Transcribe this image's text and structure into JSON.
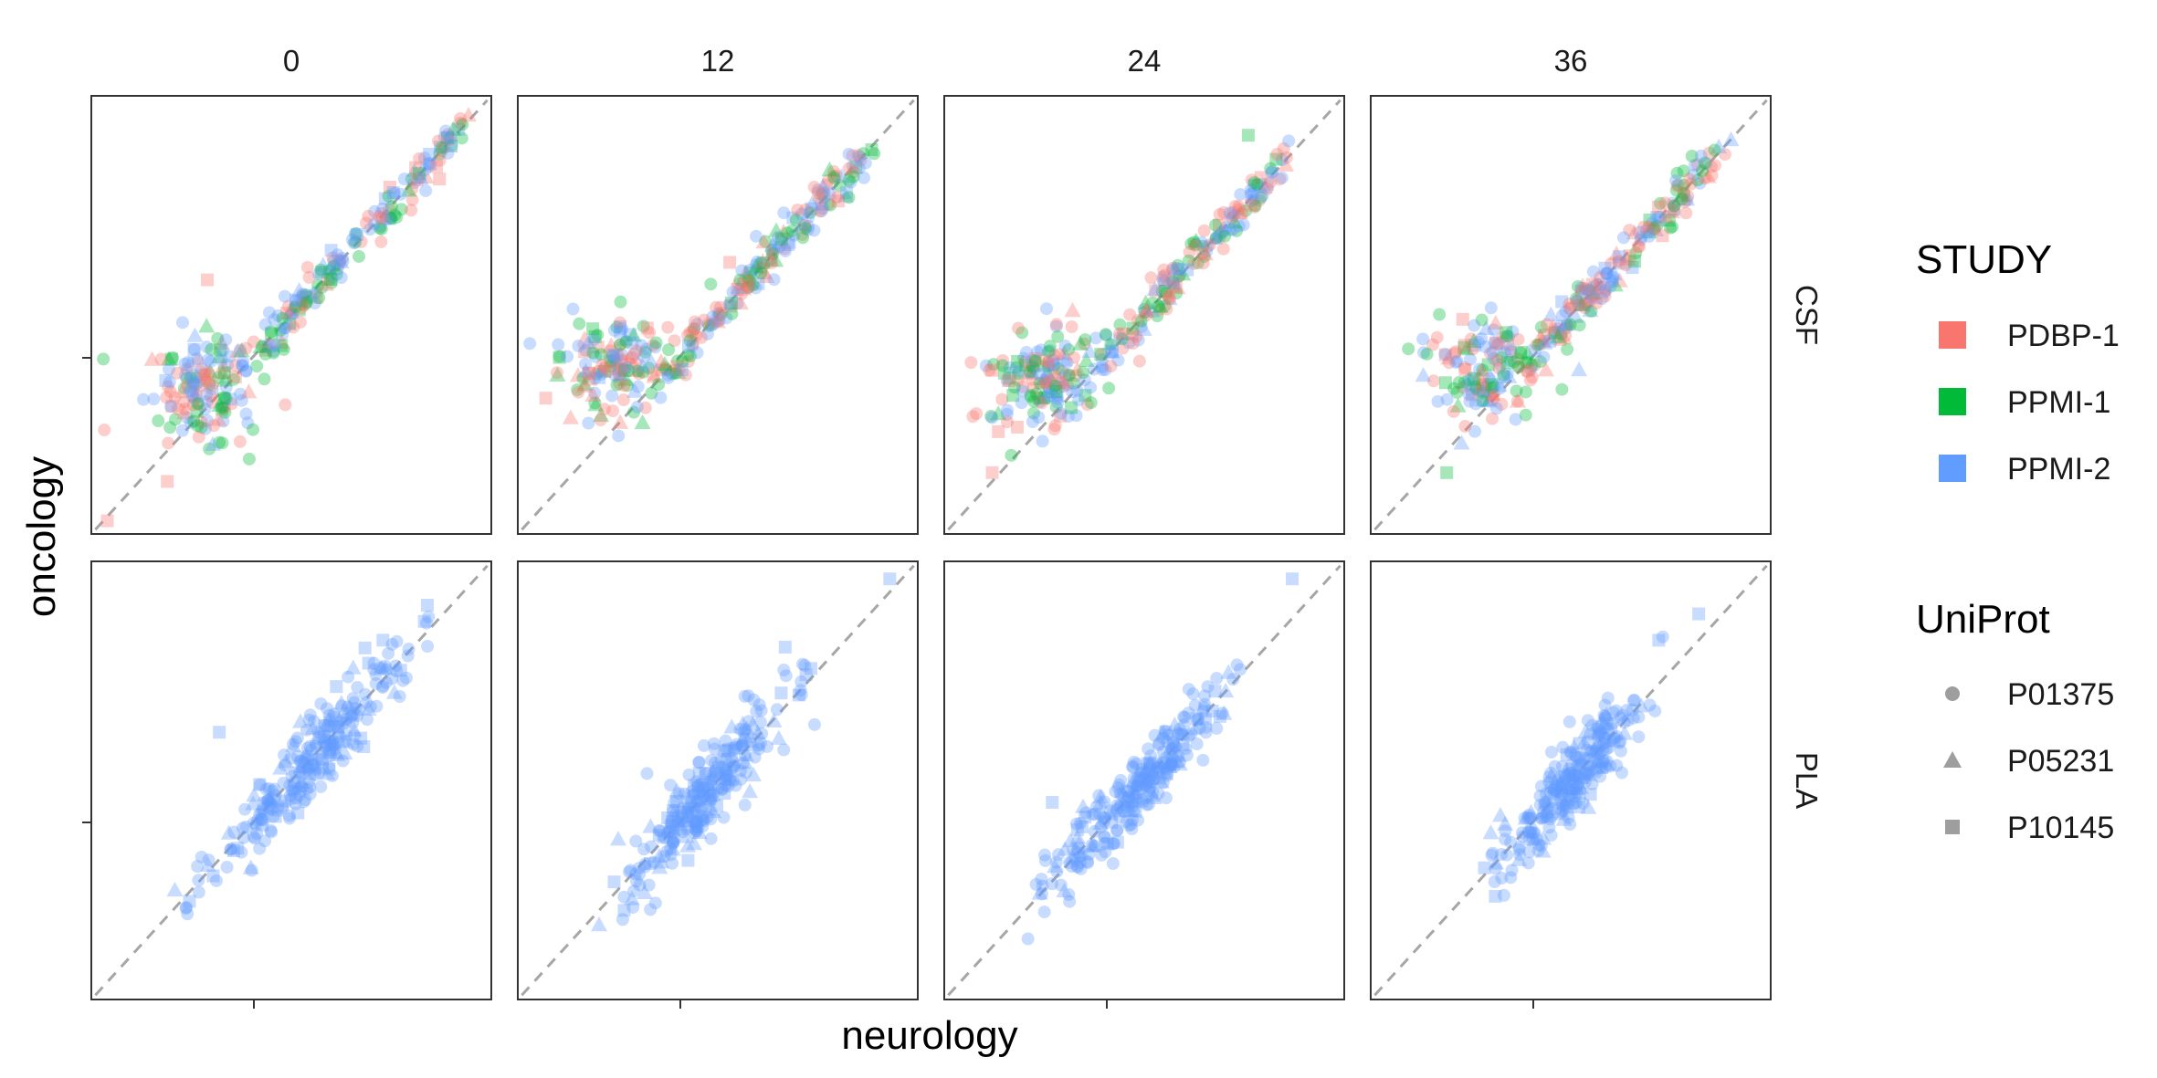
{
  "chart_data": {
    "type": "scatter",
    "facet_columns": [
      "0",
      "12",
      "24",
      "36"
    ],
    "facet_rows": [
      "CSF",
      "PLA"
    ],
    "xlabel": "neurology",
    "ylabel": "oncology",
    "reference_line": "y = x (dashed grey)",
    "x_tick_labels": [],
    "y_tick_labels": [],
    "axis_range_normalized": [
      0,
      1
    ],
    "legend": {
      "position": "right",
      "study": {
        "title": "STUDY",
        "entries": [
          {
            "label": "PDBP-1",
            "color": "#F8766D"
          },
          {
            "label": "PPMI-1",
            "color": "#00BA38"
          },
          {
            "label": "PPMI-2",
            "color": "#619CFF"
          }
        ]
      },
      "uniprot": {
        "title": "UniProt",
        "entries": [
          {
            "label": "P01375",
            "shape": "circle"
          },
          {
            "label": "P05231",
            "shape": "triangle"
          },
          {
            "label": "P10145",
            "shape": "square"
          }
        ]
      }
    },
    "panels": [
      {
        "row": "CSF",
        "col": "0",
        "studies": [
          "PDBP-1",
          "PPMI-1",
          "PPMI-2"
        ],
        "cluster_x": [
          0.12,
          0.97
        ],
        "cluster_y": [
          0.1,
          0.97
        ],
        "notable_points": [
          [
            0.04,
            0.03
          ],
          [
            0.19,
            0.12
          ],
          [
            0.29,
            0.58
          ]
        ]
      },
      {
        "row": "CSF",
        "col": "12",
        "studies": [
          "PDBP-1",
          "PPMI-1",
          "PPMI-2"
        ],
        "cluster_x": [
          0.09,
          0.9
        ],
        "cluster_y": [
          0.15,
          0.9
        ],
        "notable_points": [
          [
            0.07,
            0.31
          ],
          [
            0.53,
            0.62
          ]
        ]
      },
      {
        "row": "CSF",
        "col": "24",
        "studies": [
          "PDBP-1",
          "PPMI-1",
          "PPMI-2"
        ],
        "cluster_x": [
          0.1,
          0.9
        ],
        "cluster_y": [
          0.13,
          0.95
        ],
        "notable_points": [
          [
            0.12,
            0.14
          ],
          [
            0.76,
            0.91
          ]
        ]
      },
      {
        "row": "CSF",
        "col": "36",
        "studies": [
          "PDBP-1",
          "PPMI-1",
          "PPMI-2"
        ],
        "cluster_x": [
          0.12,
          0.9
        ],
        "cluster_y": [
          0.14,
          0.9
        ],
        "notable_points": [
          [
            0.19,
            0.14
          ],
          [
            0.23,
            0.49
          ]
        ]
      },
      {
        "row": "PLA",
        "col": "0",
        "studies": [
          "PPMI-2"
        ],
        "cluster_x": [
          0.25,
          0.86
        ],
        "cluster_y": [
          0.25,
          0.87
        ],
        "notable_points": [
          [
            0.32,
            0.61
          ],
          [
            0.84,
            0.9
          ]
        ]
      },
      {
        "row": "PLA",
        "col": "12",
        "studies": [
          "PPMI-2"
        ],
        "cluster_x": [
          0.24,
          0.71
        ],
        "cluster_y": [
          0.27,
          0.71
        ],
        "notable_points": [
          [
            0.93,
            0.96
          ]
        ]
      },
      {
        "row": "PLA",
        "col": "24",
        "studies": [
          "PPMI-2"
        ],
        "cluster_x": [
          0.24,
          0.73
        ],
        "cluster_y": [
          0.29,
          0.74
        ],
        "notable_points": [
          [
            0.27,
            0.45
          ],
          [
            0.87,
            0.96
          ]
        ]
      },
      {
        "row": "PLA",
        "col": "36",
        "studies": [
          "PPMI-2"
        ],
        "cluster_x": [
          0.3,
          0.7
        ],
        "cluster_y": [
          0.3,
          0.7
        ],
        "notable_points": [
          [
            0.72,
            0.82
          ],
          [
            0.82,
            0.88
          ]
        ]
      }
    ]
  }
}
